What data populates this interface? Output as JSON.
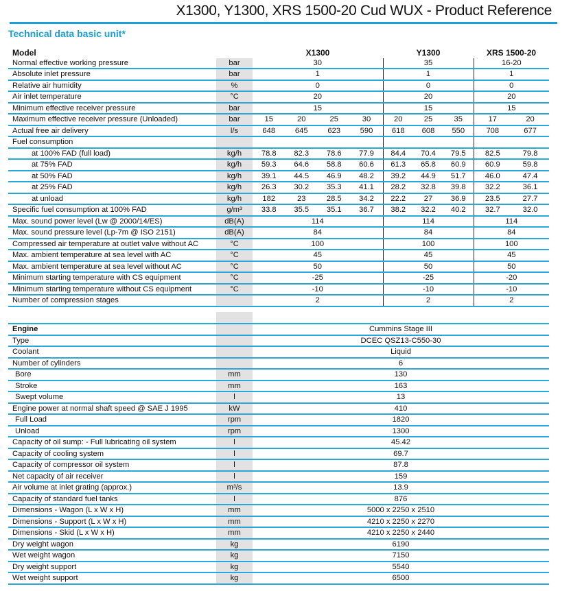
{
  "header": {
    "title": "X1300, Y1300, XRS 1500-20 Cud WUX - Product Reference",
    "subtitle": "Technical data basic unit*"
  },
  "colors": {
    "accent": "#1aa0d8",
    "unit_column": "#e2e2e2"
  },
  "basic": {
    "model_label": "Model",
    "models": [
      "X1300",
      "Y1300",
      "XRS 1500-20"
    ],
    "rows": [
      {
        "label": "Normal effective working pressure",
        "unit": "bar",
        "values": [
          "30",
          "35",
          "16-20"
        ]
      },
      {
        "label": "Absolute inlet pressure",
        "unit": "bar",
        "values": [
          "1",
          "1",
          "1"
        ]
      },
      {
        "label": "Relative air humidity",
        "unit": "%",
        "values": [
          "0",
          "0",
          "0"
        ]
      },
      {
        "label": "Air inlet temperature",
        "unit": "°C",
        "values": [
          "20",
          "20",
          "20"
        ]
      },
      {
        "label": "Minimum effective receiver pressure",
        "unit": "bar",
        "values": [
          "15",
          "15",
          "15"
        ]
      },
      {
        "label": "Maximum effective receiver pressure (Unloaded)",
        "unit": "bar",
        "values": [
          "15",
          "20",
          "25",
          "30",
          "20",
          "25",
          "35",
          "17",
          "20"
        ]
      },
      {
        "label": "Actual free air delivery",
        "unit": "l/s",
        "values": [
          "648",
          "645",
          "623",
          "590",
          "618",
          "608",
          "550",
          "708",
          "677"
        ]
      },
      {
        "label": "Fuel consumption",
        "unit": "",
        "values": [
          "",
          "",
          "",
          "",
          "",
          "",
          "",
          "",
          ""
        ]
      },
      {
        "label": "at 100% FAD (full load)",
        "unit": "kg/h",
        "indent": 2,
        "values": [
          "78.8",
          "82.3",
          "78.6",
          "77.9",
          "84.4",
          "70.4",
          "79.5",
          "82.5",
          "79.8"
        ]
      },
      {
        "label": "at 75% FAD",
        "unit": "kg/h",
        "indent": 2,
        "values": [
          "59.3",
          "64.6",
          "58.8",
          "60.6",
          "61.3",
          "65.8",
          "60.9",
          "60.9",
          "59.8"
        ]
      },
      {
        "label": "at 50% FAD",
        "unit": "kg/h",
        "indent": 2,
        "values": [
          "39.1",
          "44.5",
          "46.9",
          "48.2",
          "39.2",
          "44.9",
          "51.7",
          "46.0",
          "47.4"
        ]
      },
      {
        "label": "at 25% FAD",
        "unit": "kg/h",
        "indent": 2,
        "values": [
          "26.3",
          "30.2",
          "35.3",
          "41.1",
          "28.2",
          "32.8",
          "39.8",
          "32.2",
          "36.1"
        ]
      },
      {
        "label": "at unload",
        "unit": "kg/h",
        "indent": 2,
        "values": [
          "182",
          "23",
          "28.5",
          "34.2",
          "22.2",
          "27",
          "36.9",
          "23.5",
          "27.7"
        ]
      },
      {
        "label": "Specific fuel consumption at 100% FAD",
        "unit": "g/m³",
        "values": [
          "33.8",
          "35.5",
          "35.1",
          "36.7",
          "38.2",
          "32.2",
          "40.2",
          "32.7",
          "32.0"
        ]
      },
      {
        "label": "Max. sound power level (Lw @ 2000/14/ES)",
        "unit": "dB(A)",
        "values": [
          "114",
          "114",
          "114"
        ]
      },
      {
        "label": "Max. sound pressure level (Lp-7m @ ISO 2151)",
        "unit": "dB(A)",
        "values": [
          "84",
          "84",
          "84"
        ]
      },
      {
        "label": "Compressed air temperature at outlet valve without AC",
        "unit": "°C",
        "values": [
          "100",
          "100",
          "100"
        ]
      },
      {
        "label": "Max. ambient temperature at sea level with AC",
        "unit": "°C",
        "values": [
          "45",
          "45",
          "45"
        ]
      },
      {
        "label": "Max. ambient temperature at sea level without AC",
        "unit": "°C",
        "values": [
          "50",
          "50",
          "50"
        ]
      },
      {
        "label": "Minimum starting temperature with CS equipment",
        "unit": "°C",
        "values": [
          "-25",
          "-25",
          "-20"
        ]
      },
      {
        "label": "Minimum starting temperature without CS equipment",
        "unit": "°C",
        "values": [
          "-10",
          "-10",
          "-10"
        ]
      },
      {
        "label": "Number of compression stages",
        "unit": "",
        "values": [
          "2",
          "2",
          "2"
        ]
      }
    ]
  },
  "engine": {
    "rows": [
      {
        "label": "Engine",
        "unit": "",
        "value": "Cummins Stage III",
        "bold": true
      },
      {
        "label": "Type",
        "unit": "",
        "value": "DCEC QSZ13-C550-30"
      },
      {
        "label": "Coolant",
        "unit": "",
        "value": "Liquid"
      },
      {
        "label": "Number of cylinders",
        "unit": "",
        "value": "6"
      },
      {
        "label": "Bore",
        "unit": "mm",
        "value": "130",
        "indent": 1
      },
      {
        "label": "Stroke",
        "unit": "mm",
        "value": "163",
        "indent": 1
      },
      {
        "label": "Swept volume",
        "unit": "l",
        "value": "13",
        "indent": 1
      },
      {
        "label": "Engine power at normal shaft speed @ SAE J 1995",
        "unit": "kW",
        "value": "410"
      },
      {
        "label": "Full Load",
        "unit": "rpm",
        "value": "1820",
        "indent": 1
      },
      {
        "label": "Unload",
        "unit": "rpm",
        "value": "1300",
        "indent": 1
      },
      {
        "label": "Capacity of oil sump: - Full lubricating oil system",
        "unit": "l",
        "value": "45.42"
      },
      {
        "label": "Capacity of cooling system",
        "unit": "l",
        "value": "69.7"
      },
      {
        "label": "Capacity of compressor oil system",
        "unit": "l",
        "value": "87.8"
      },
      {
        "label": "Net capacity of air receiver",
        "unit": "l",
        "value": "159"
      },
      {
        "label": "Air volume at inlet grating (approx.)",
        "unit": "m³/s",
        "value": "13.9"
      },
      {
        "label": "Capacity of standard fuel tanks",
        "unit": "l",
        "value": "876"
      },
      {
        "label": "Dimensions - Wagon (L x W x H)",
        "unit": "mm",
        "value": "5000 x 2250 x 2510"
      },
      {
        "label": "Dimensions - Support (L x W x H)",
        "unit": "mm",
        "value": "4210 x 2250 x 2270"
      },
      {
        "label": "Dimensions - Skid (L x W x H)",
        "unit": "mm",
        "value": "4210 x 2250 x 2440"
      },
      {
        "label": "Dry weight wagon",
        "unit": "kg",
        "value": "6190"
      },
      {
        "label": "Wet weight wagon",
        "unit": "kg",
        "value": "7150"
      },
      {
        "label": "Dry weight support",
        "unit": "kg",
        "value": "5540"
      },
      {
        "label": "Wet weight support",
        "unit": "kg",
        "value": "6500"
      }
    ]
  }
}
